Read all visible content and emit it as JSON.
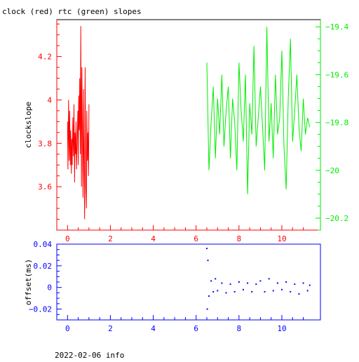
{
  "header": {
    "title": "clock (red) rtc (green) slopes"
  },
  "footer": {
    "text": "2022-02-06 info"
  },
  "colors": {
    "clock": "#ff0000",
    "rtc": "#00ee00",
    "offset": "#0000ff",
    "frame": "#000000"
  },
  "chart_data": [
    {
      "type": "line",
      "title": "clock (red) rtc (green) slopes",
      "xlabel": "",
      "xlim": [
        -0.5,
        11.8
      ],
      "xticks": [
        0,
        2,
        4,
        6,
        8,
        10
      ],
      "ylabel": "clockslope",
      "ylim": [
        3.4,
        4.37
      ],
      "yticks": [
        3.6,
        3.8,
        4,
        4.2
      ],
      "y2lim": [
        -20.25,
        -19.37
      ],
      "y2ticks": [
        -20.2,
        -20,
        -19.8,
        -19.6,
        -19.4
      ],
      "grid": false,
      "series": [
        {
          "name": "clock",
          "axis": "left",
          "color": "#ff0000",
          "x": [
            0.0,
            0.02,
            0.05,
            0.08,
            0.1,
            0.13,
            0.15,
            0.18,
            0.2,
            0.22,
            0.25,
            0.28,
            0.3,
            0.33,
            0.35,
            0.38,
            0.4,
            0.42,
            0.45,
            0.48,
            0.5,
            0.52,
            0.55,
            0.57,
            0.6,
            0.62,
            0.65,
            0.67,
            0.7,
            0.72,
            0.75,
            0.77,
            0.8,
            0.82,
            0.85,
            0.88,
            0.9,
            0.93,
            0.95,
            0.98,
            1.0
          ],
          "values": [
            3.9,
            3.68,
            4.0,
            3.72,
            3.95,
            3.7,
            3.86,
            3.66,
            3.82,
            3.7,
            3.92,
            3.74,
            3.98,
            3.62,
            3.85,
            3.75,
            3.9,
            3.68,
            3.8,
            3.95,
            3.7,
            4.02,
            3.86,
            4.1,
            3.75,
            4.34,
            3.6,
            4.15,
            3.8,
            3.55,
            4.05,
            3.7,
            3.45,
            4.15,
            3.6,
            3.5,
            3.95,
            3.72,
            3.85,
            3.65,
            3.98
          ]
        },
        {
          "name": "rtc",
          "axis": "right",
          "color": "#00ee00",
          "x": [
            6.5,
            6.6,
            6.7,
            6.8,
            6.9,
            7.0,
            7.1,
            7.2,
            7.3,
            7.4,
            7.5,
            7.6,
            7.7,
            7.8,
            7.9,
            8.0,
            8.1,
            8.2,
            8.3,
            8.4,
            8.5,
            8.6,
            8.7,
            8.8,
            8.9,
            9.0,
            9.1,
            9.2,
            9.3,
            9.4,
            9.5,
            9.6,
            9.7,
            9.8,
            9.9,
            10.0,
            10.1,
            10.2,
            10.3,
            10.4,
            10.5,
            10.6,
            10.7,
            10.8,
            10.9,
            11.0,
            11.1,
            11.2,
            11.3
          ],
          "values": [
            -19.55,
            -20.0,
            -19.8,
            -19.65,
            -19.95,
            -19.7,
            -19.85,
            -19.6,
            -19.9,
            -19.75,
            -19.65,
            -19.95,
            -19.7,
            -19.8,
            -20.0,
            -19.55,
            -19.75,
            -19.88,
            -19.6,
            -20.1,
            -19.72,
            -19.85,
            -19.48,
            -19.9,
            -19.78,
            -19.65,
            -19.82,
            -20.0,
            -19.4,
            -19.88,
            -19.72,
            -19.95,
            -19.6,
            -19.85,
            -19.78,
            -19.5,
            -19.9,
            -20.08,
            -19.7,
            -19.45,
            -19.88,
            -19.75,
            -19.6,
            -19.82,
            -19.92,
            -19.7,
            -19.85,
            -19.78,
            -19.82
          ]
        }
      ]
    },
    {
      "type": "scatter",
      "title": "",
      "xlabel": "",
      "xlim": [
        -0.5,
        11.8
      ],
      "xticks": [
        0,
        2,
        4,
        6,
        8,
        10
      ],
      "ylabel": "offset(ms)",
      "ylim": [
        -0.03,
        0.04
      ],
      "yticks": [
        -0.02,
        0,
        0.02,
        0.04
      ],
      "grid": false,
      "series": [
        {
          "name": "offset",
          "color": "#0000ff",
          "x": [
            6.5,
            6.52,
            6.55,
            6.6,
            6.7,
            6.8,
            6.9,
            7.0,
            7.2,
            7.4,
            7.6,
            7.8,
            8.0,
            8.2,
            8.4,
            8.6,
            8.8,
            9.0,
            9.2,
            9.4,
            9.6,
            9.8,
            10.0,
            10.2,
            10.4,
            10.6,
            10.8,
            11.0,
            11.2,
            11.3
          ],
          "values": [
            0.036,
            -0.02,
            0.025,
            -0.008,
            0.006,
            -0.004,
            0.008,
            -0.003,
            0.004,
            -0.005,
            0.003,
            -0.004,
            0.005,
            -0.002,
            0.004,
            -0.004,
            0.003,
            0.006,
            -0.004,
            0.008,
            -0.003,
            0.004,
            -0.002,
            0.005,
            -0.004,
            0.003,
            -0.006,
            0.004,
            -0.003,
            0.002
          ]
        }
      ]
    }
  ]
}
